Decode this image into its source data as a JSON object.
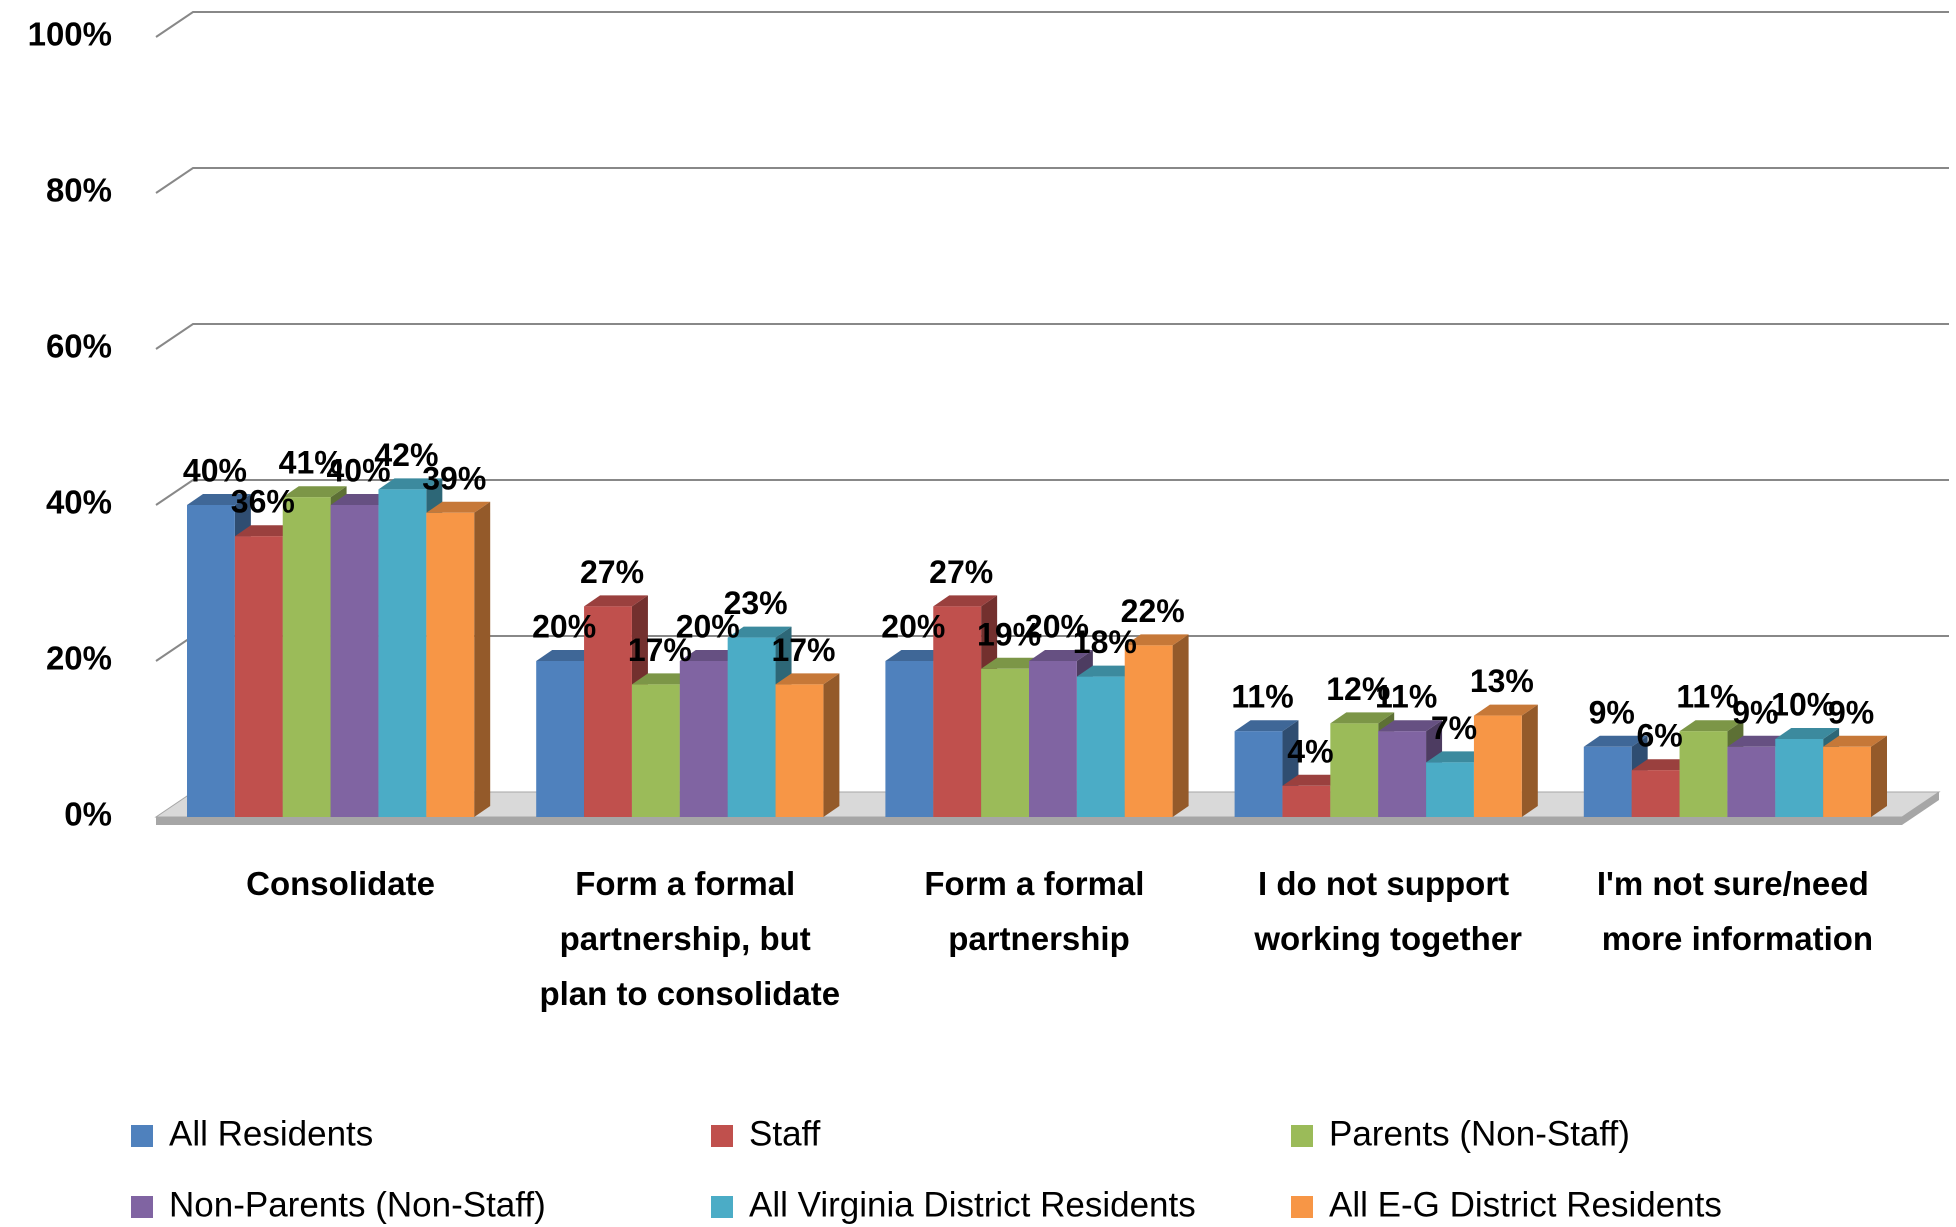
{
  "chart_data": {
    "type": "bar3d",
    "categories": [
      "Consolidate",
      "Form a formal partnership, but plan to consolidate",
      "Form a formal partnership",
      "I do not support working together",
      "I'm not sure/need more information"
    ],
    "series": [
      {
        "name": "All Residents",
        "color": "#4f81bd",
        "values": [
          40,
          20,
          20,
          11,
          9
        ],
        "value_labels": [
          "40%",
          "20%",
          "20%",
          "11%",
          "9%"
        ]
      },
      {
        "name": "Staff",
        "color": "#c0504d",
        "values": [
          36,
          27,
          27,
          4,
          6
        ],
        "value_labels": [
          "36%",
          "27%",
          "27%",
          "4%",
          "6%"
        ]
      },
      {
        "name": "Parents (Non-Staff)",
        "color": "#9bbb59",
        "values": [
          41,
          17,
          19,
          12,
          11
        ],
        "value_labels": [
          "41%",
          "17%",
          "19%",
          "12%",
          "11%"
        ]
      },
      {
        "name": "Non-Parents (Non-Staff)",
        "color": "#8064a2",
        "values": [
          40,
          20,
          20,
          11,
          9
        ],
        "value_labels": [
          "40%",
          "20%",
          "20%",
          "11%",
          "9%"
        ]
      },
      {
        "name": "All Virginia District Residents",
        "color": "#4bacc6",
        "values": [
          42,
          23,
          18,
          7,
          10
        ],
        "value_labels": [
          "42%",
          "23%",
          "18%",
          "7%",
          "10%"
        ]
      },
      {
        "name": "All E-G District Residents",
        "color": "#f79646",
        "values": [
          39,
          17,
          22,
          13,
          9
        ],
        "value_labels": [
          "39%",
          "17%",
          "22%",
          "13%",
          "9%"
        ]
      }
    ],
    "ylim": [
      0,
      100
    ],
    "yticks": [
      {
        "value": 0,
        "label": "0%"
      },
      {
        "value": 20,
        "label": "20%"
      },
      {
        "value": 40,
        "label": "40%"
      },
      {
        "value": 60,
        "label": "60%"
      },
      {
        "value": 80,
        "label": "80%"
      },
      {
        "value": 100,
        "label": "100%"
      }
    ],
    "grid": true,
    "legend": "bottom"
  }
}
